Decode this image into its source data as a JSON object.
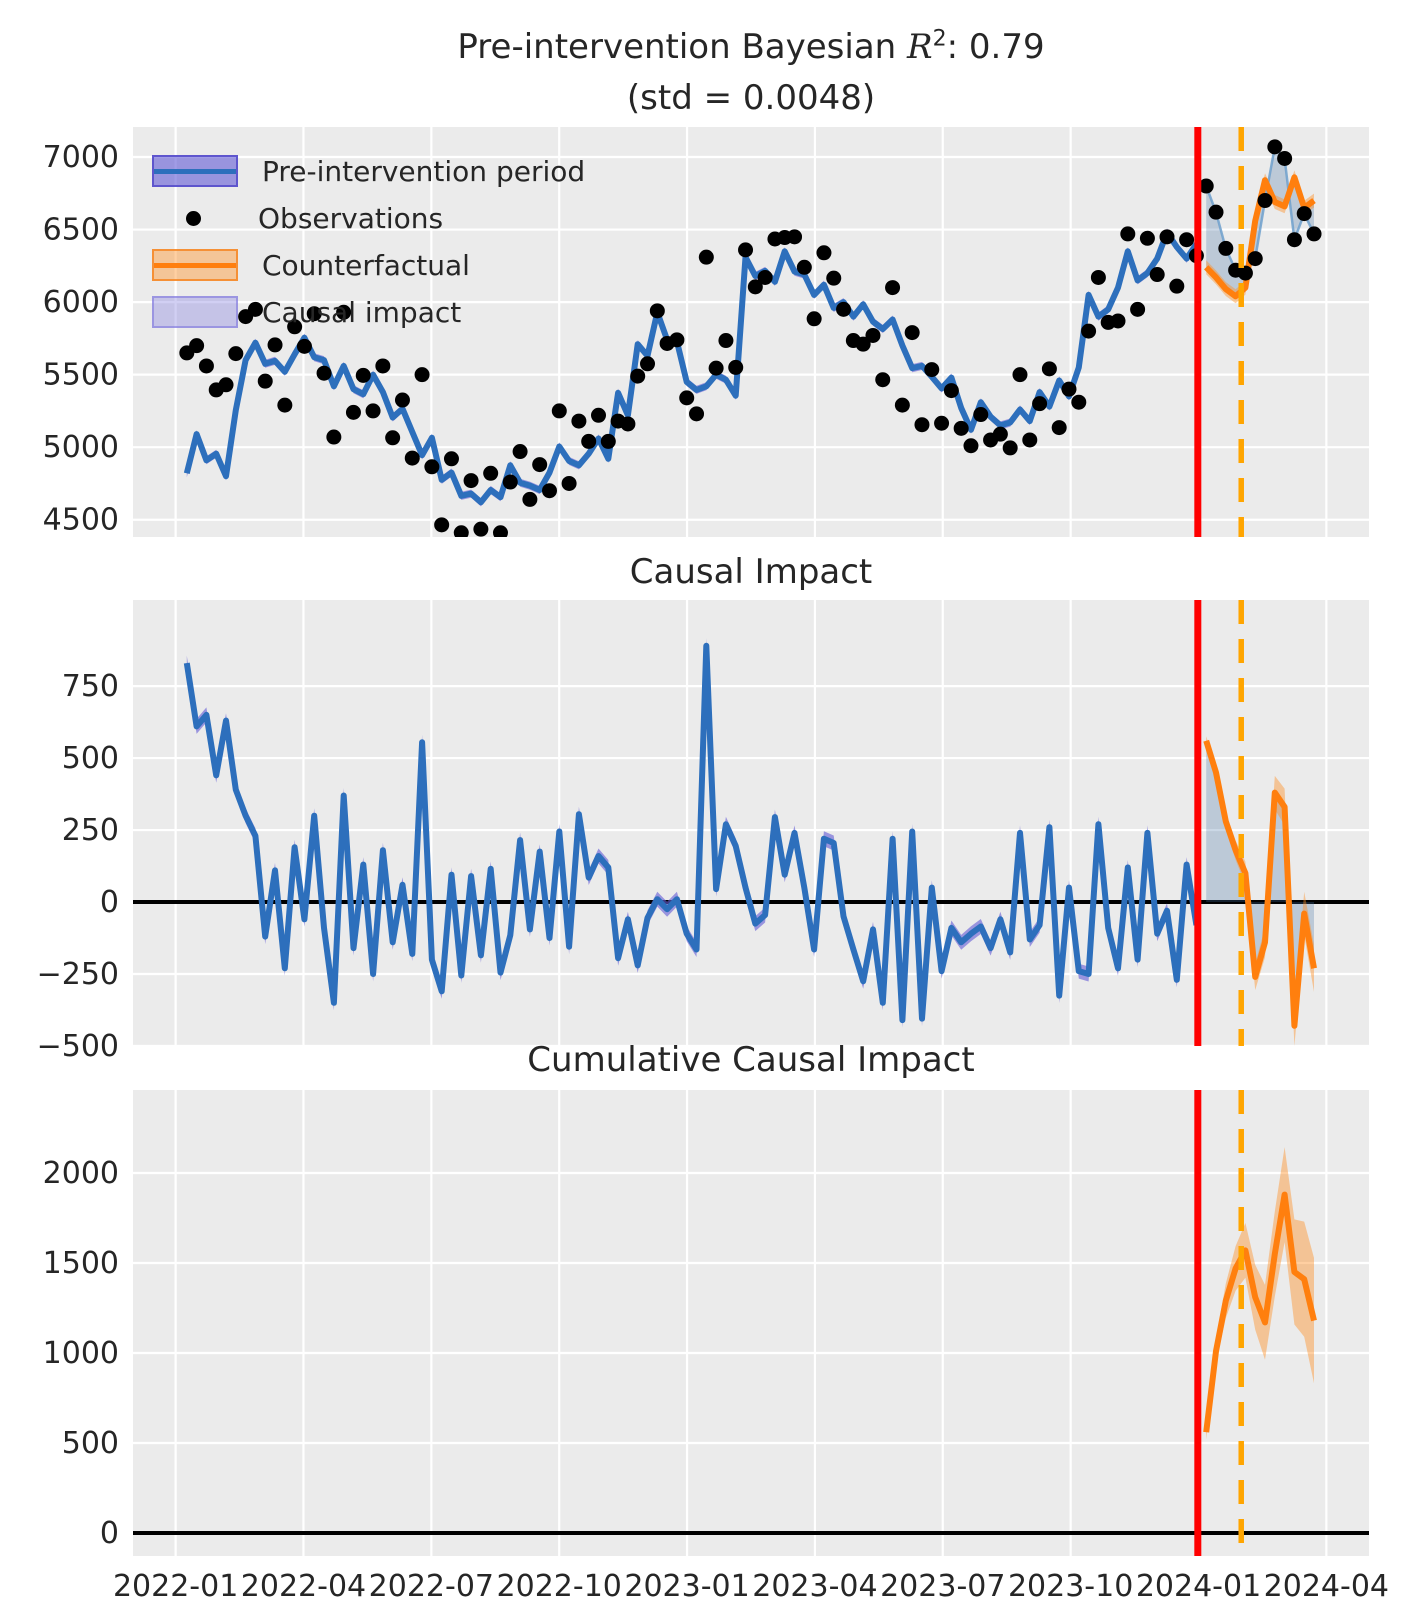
{
  "figure": {
    "title_line1_prefix": "Pre-intervention Bayesian ",
    "title_r": "R",
    "title_r_sup": "2",
    "title_line1_suffix": ": 0.79",
    "title_line2": "(std = 0.0048)",
    "panel2_title": "Causal Impact",
    "panel3_title": "Cumulative Causal Impact"
  },
  "legend": {
    "items": [
      {
        "label": "Pre-intervention period",
        "swatch": "band-blue"
      },
      {
        "label": "Observations",
        "swatch": "dot"
      },
      {
        "label": "Counterfactual",
        "swatch": "band-orange"
      },
      {
        "label": "Causal impact",
        "swatch": "patch-lightblue"
      }
    ]
  },
  "colors": {
    "plot_background": "#ebebeb",
    "grid": "#ffffff",
    "fit_line": "#2d6fbc",
    "fit_band": "rgba(104,96,214,0.62)",
    "counterfactual_line": "#ff7f0e",
    "counterfactual_band": "rgba(255,140,30,0.42)",
    "impact_shading": "rgba(70,115,165,0.28)",
    "observation_dot": "#000000",
    "observation_post_line": "rgba(110,160,205,0.85)",
    "intervention_line": "#ff0000",
    "reference_line": "#ffa500",
    "zero_line": "#000000",
    "text": "#262626"
  },
  "chart_data": [
    {
      "type": "line",
      "title": "Pre-intervention Bayesian R2: 0.79 (std = 0.0048)",
      "x_start_date": "2022-01-09",
      "x_freq_days": 7,
      "n_pre": 104,
      "n_post": 12,
      "intervention_date": "2024-01-01",
      "reference_date": "2024-02-01",
      "x_tick_labels": [
        "2022-01",
        "2022-04",
        "2022-07",
        "2022-10",
        "2023-01",
        "2023-04",
        "2023-07",
        "2023-10",
        "2024-01",
        "2024-04"
      ],
      "x_tick_month_offsets": [
        0,
        3,
        6,
        9,
        12,
        15,
        18,
        21,
        24,
        27
      ],
      "y_ticks": [
        4500,
        5000,
        5500,
        6000,
        6500,
        7000
      ],
      "ylim": [
        4381,
        7207
      ],
      "legend_entries": [
        "Pre-intervention period",
        "Observations",
        "Counterfactual",
        "Causal impact"
      ],
      "series": {
        "model_fit_pre": [
          4820,
          5090,
          4910,
          4955,
          4800,
          5255,
          5600,
          5720,
          5575,
          5595,
          5520,
          5640,
          5755,
          5620,
          5600,
          5420,
          5560,
          5400,
          5365,
          5500,
          5380,
          5205,
          5265,
          5105,
          4945,
          5065,
          4775,
          4825,
          4665,
          4680,
          4620,
          4705,
          4655,
          4875,
          4755,
          4735,
          4705,
          4825,
          5005,
          4905,
          4875,
          4955,
          5060,
          4920,
          5375,
          5220,
          5710,
          5630,
          5930,
          5740,
          5730,
          5450,
          5395,
          5420,
          5500,
          5465,
          5355,
          6310,
          6180,
          6215,
          6140,
          6350,
          6210,
          6190,
          6050,
          6120,
          5960,
          6000,
          5900,
          5985,
          5865,
          5815,
          5880,
          5700,
          5545,
          5560,
          5485,
          5405,
          5480,
          5270,
          5120,
          5310,
          5210,
          5150,
          5170,
          5260,
          5180,
          5380,
          5280,
          5460,
          5350,
          5550,
          6050,
          5900,
          5950,
          6100,
          6350,
          6150,
          6200,
          6300,
          6480,
          6380,
          6300,
          6400
        ],
        "observations_pre": [
          5650,
          5700,
          5560,
          5395,
          5430,
          5645,
          5900,
          5950,
          5455,
          5705,
          5290,
          5830,
          5695,
          5920,
          5510,
          5070,
          5930,
          5240,
          5495,
          5250,
          5560,
          5065,
          5325,
          4925,
          5500,
          4865,
          4465,
          4920,
          4410,
          4770,
          4435,
          4820,
          4410,
          4760,
          4970,
          4640,
          4880,
          4700,
          5250,
          4750,
          5180,
          5040,
          5220,
          5040,
          5180,
          5160,
          5490,
          5575,
          5940,
          5715,
          5740,
          5340,
          5230,
          6310,
          5545,
          5735,
          5550,
          6360,
          6105,
          6170,
          6435,
          6445,
          6450,
          6240,
          5885,
          6340,
          6165,
          5950,
          5735,
          5710,
          5770,
          5465,
          6100,
          5290,
          5790,
          5155,
          5535,
          5165,
          5390,
          5130,
          5010,
          5225,
          5050,
          5090,
          4995,
          5500,
          5050,
          5300,
          5540,
          5135,
          5400,
          5310,
          5800,
          6170,
          5860,
          5870,
          6470,
          5950,
          6440,
          6190,
          6450,
          6110,
          6430,
          6320
        ],
        "counterfactual_post": [
          6240,
          6170,
          6090,
          6040,
          6100,
          6560,
          6840,
          6690,
          6660,
          6860,
          6650,
          6700
        ],
        "observations_post": [
          6800,
          6620,
          6370,
          6220,
          6200,
          6300,
          6700,
          7070,
          6990,
          6430,
          6610,
          6470
        ]
      },
      "band_halfwidth": {
        "model_fit": 28,
        "counterfactual": 48
      }
    },
    {
      "type": "line",
      "title": "Causal Impact",
      "ylim": [
        -500,
        1049
      ],
      "y_ticks": [
        -500,
        -250,
        0,
        250,
        500,
        750
      ],
      "note": "pre-period impact = observations - model fit; post-period impact = observations - counterfactual",
      "series": {
        "impact_post": [
          560,
          450,
          280,
          180,
          100,
          -260,
          -140,
          380,
          330,
          -430,
          -40,
          -230
        ]
      },
      "band": {
        "pre_halfwidth": 26,
        "post_halfwidth_start": 16,
        "post_halfwidth_step": 6
      },
      "zero_line": 0
    },
    {
      "type": "line",
      "title": "Cumulative Causal Impact",
      "ylim": [
        -128,
        2461
      ],
      "y_ticks": [
        0,
        500,
        1000,
        1500,
        2000
      ],
      "series": {
        "cumulative_impact_post": [
          560,
          1010,
          1290,
          1470,
          1570,
          1310,
          1170,
          1550,
          1880,
          1450,
          1410,
          1180
        ]
      },
      "band": {
        "halfwidth_start": 40,
        "halfwidth_step": 28
      },
      "zero_line": 0
    }
  ]
}
